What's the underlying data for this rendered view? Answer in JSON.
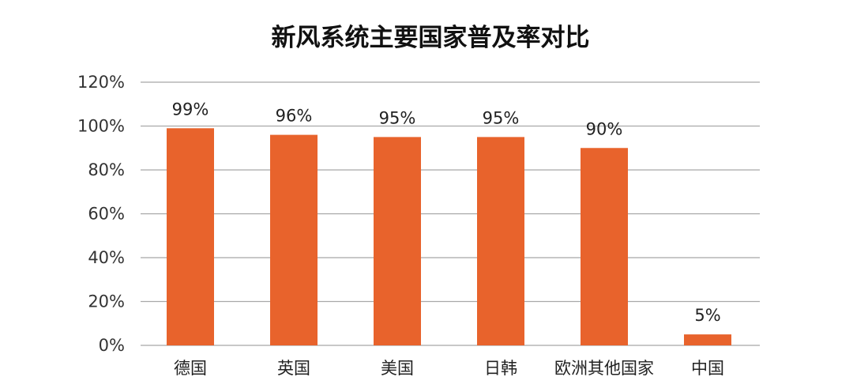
{
  "chart_data": {
    "type": "bar",
    "title": "新风系统主要国家普及率对比",
    "categories": [
      "德国",
      "英国",
      "美国",
      "日韩",
      "欧洲其他国家",
      "中国"
    ],
    "values": [
      99,
      96,
      95,
      95,
      90,
      5
    ],
    "data_labels": [
      "99%",
      "96%",
      "95%",
      "95%",
      "90%",
      "5%"
    ],
    "y_ticks": [
      0,
      20,
      40,
      60,
      80,
      100,
      120
    ],
    "y_tick_labels": [
      "0%",
      "20%",
      "40%",
      "60%",
      "80%",
      "100%",
      "120%"
    ],
    "ylim": [
      0,
      120
    ],
    "xlabel": "",
    "ylabel": "",
    "grid": true,
    "legend": "none",
    "bar_color": "#E8632C"
  }
}
